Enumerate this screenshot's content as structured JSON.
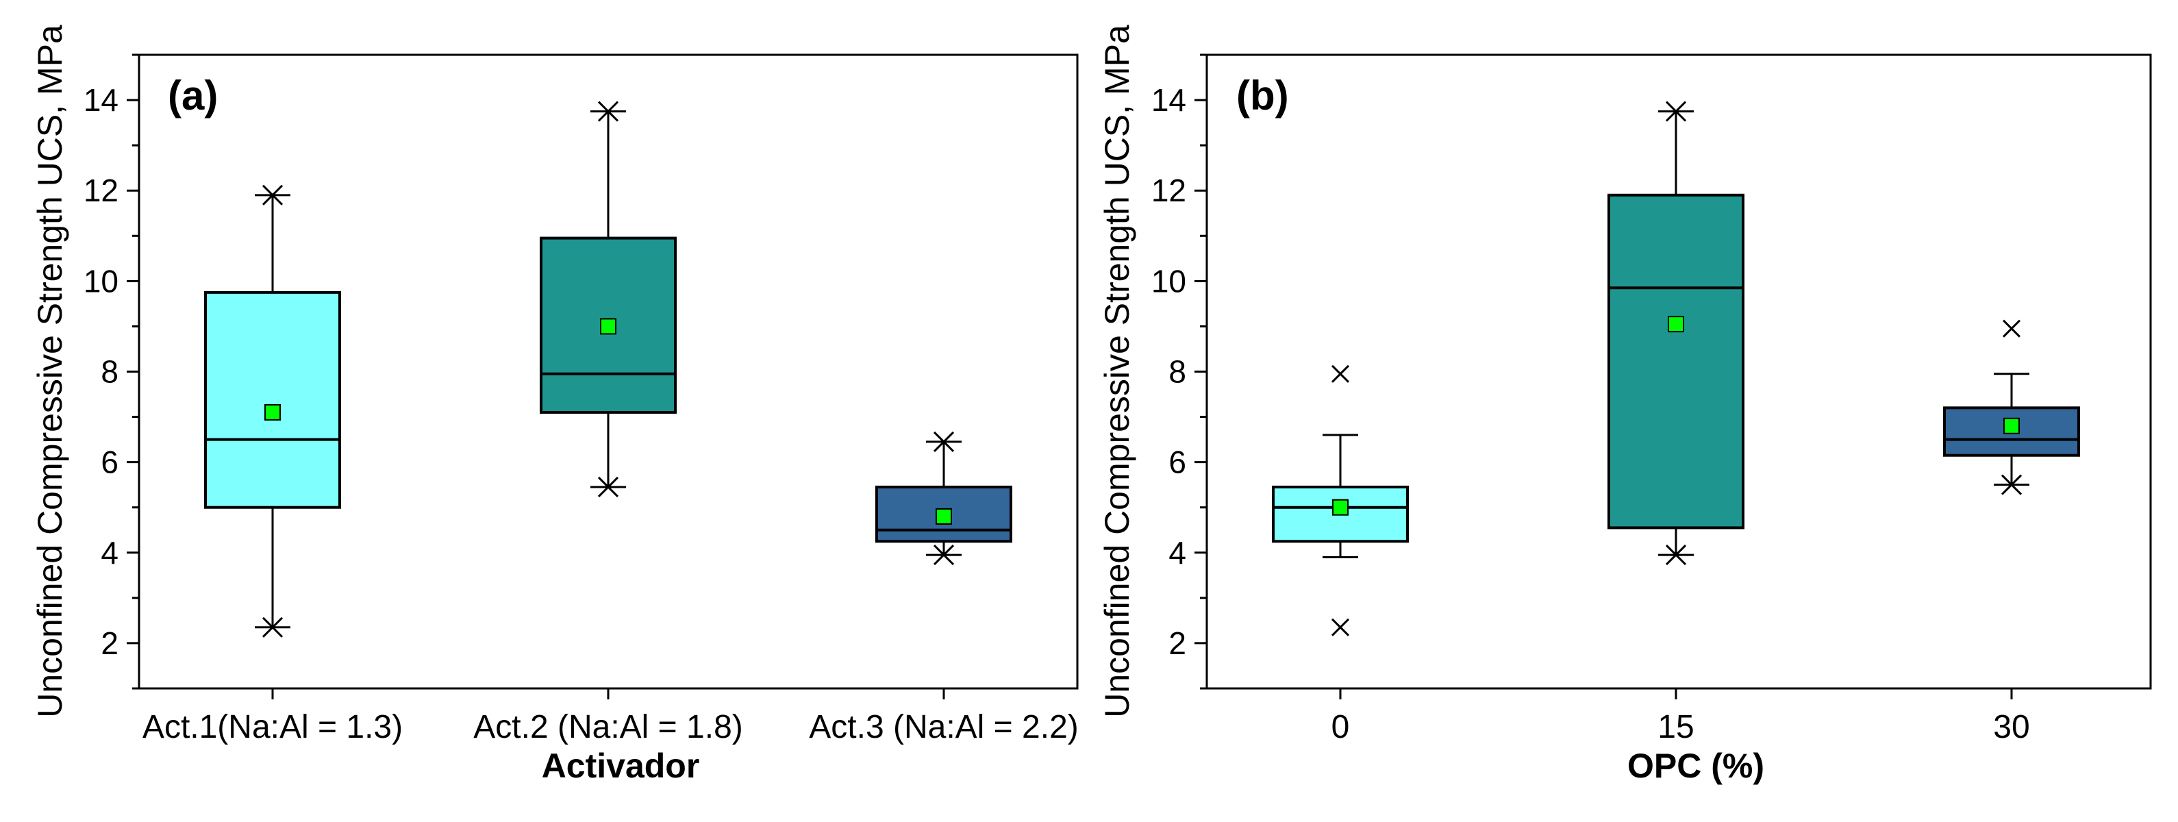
{
  "colors": {
    "light_cyan": "#7ffffd",
    "teal": "#1f9590",
    "dark_blue": "#336699",
    "mean_marker": "#00ff00",
    "line": "#000000"
  },
  "chart_data": [
    {
      "type": "box",
      "panel_label": "(a)",
      "ylabel": "Unconfined Compressive Strength UCS, MPa",
      "xlabel": "Activador",
      "ylim": [
        1,
        15
      ],
      "yticks": [
        2,
        4,
        6,
        8,
        10,
        12,
        14
      ],
      "ytick_labels": [
        "2",
        "4",
        "6",
        "8",
        "10",
        "12",
        "14"
      ],
      "categories": [
        {
          "label": "Act.1(Na:Al = 1.3)",
          "color": "#7ffffd",
          "q1": 5.0,
          "median": 6.5,
          "q3": 9.75,
          "whisker_low": 2.35,
          "whisker_high": 11.9,
          "mean": 7.1,
          "outliers": [],
          "whisker_low_x": true,
          "whisker_high_x": true
        },
        {
          "label": "Act.2 (Na:Al = 1.8)",
          "color": "#1f9590",
          "q1": 7.1,
          "median": 7.95,
          "q3": 10.95,
          "whisker_low": 5.45,
          "whisker_high": 13.75,
          "mean": 9.0,
          "outliers": [],
          "whisker_low_x": true,
          "whisker_high_x": true
        },
        {
          "label": "Act.3 (Na:Al = 2.2)",
          "color": "#336699",
          "q1": 4.25,
          "median": 4.5,
          "q3": 5.45,
          "whisker_low": 3.95,
          "whisker_high": 6.45,
          "mean": 4.8,
          "outliers": [],
          "whisker_low_x": true,
          "whisker_high_x": true
        }
      ]
    },
    {
      "type": "box",
      "panel_label": "(b)",
      "ylabel": "Unconfined Compressive Strength UCS, MPa",
      "xlabel": "OPC (%)",
      "ylim": [
        1,
        15
      ],
      "yticks": [
        2,
        4,
        6,
        8,
        10,
        12,
        14
      ],
      "ytick_labels": [
        "2",
        "4",
        "6",
        "8",
        "10",
        "12",
        "14"
      ],
      "categories": [
        {
          "label": "0",
          "color": "#7ffffd",
          "q1": 4.25,
          "median": 5.0,
          "q3": 5.45,
          "whisker_low": 3.9,
          "whisker_high": 6.6,
          "mean": 5.0,
          "outliers": [
            7.95,
            2.35
          ],
          "whisker_low_x": false,
          "whisker_high_x": false
        },
        {
          "label": "15",
          "color": "#1f9590",
          "q1": 4.55,
          "median": 9.85,
          "q3": 11.9,
          "whisker_low": 3.95,
          "whisker_high": 13.75,
          "mean": 9.05,
          "outliers": [],
          "whisker_low_x": true,
          "whisker_high_x": true
        },
        {
          "label": "30",
          "color": "#336699",
          "q1": 6.15,
          "median": 6.5,
          "q3": 7.2,
          "whisker_low": 5.5,
          "whisker_high": 7.95,
          "mean": 6.8,
          "outliers": [
            8.95
          ],
          "whisker_low_x": true,
          "whisker_high_x": false
        }
      ]
    }
  ]
}
